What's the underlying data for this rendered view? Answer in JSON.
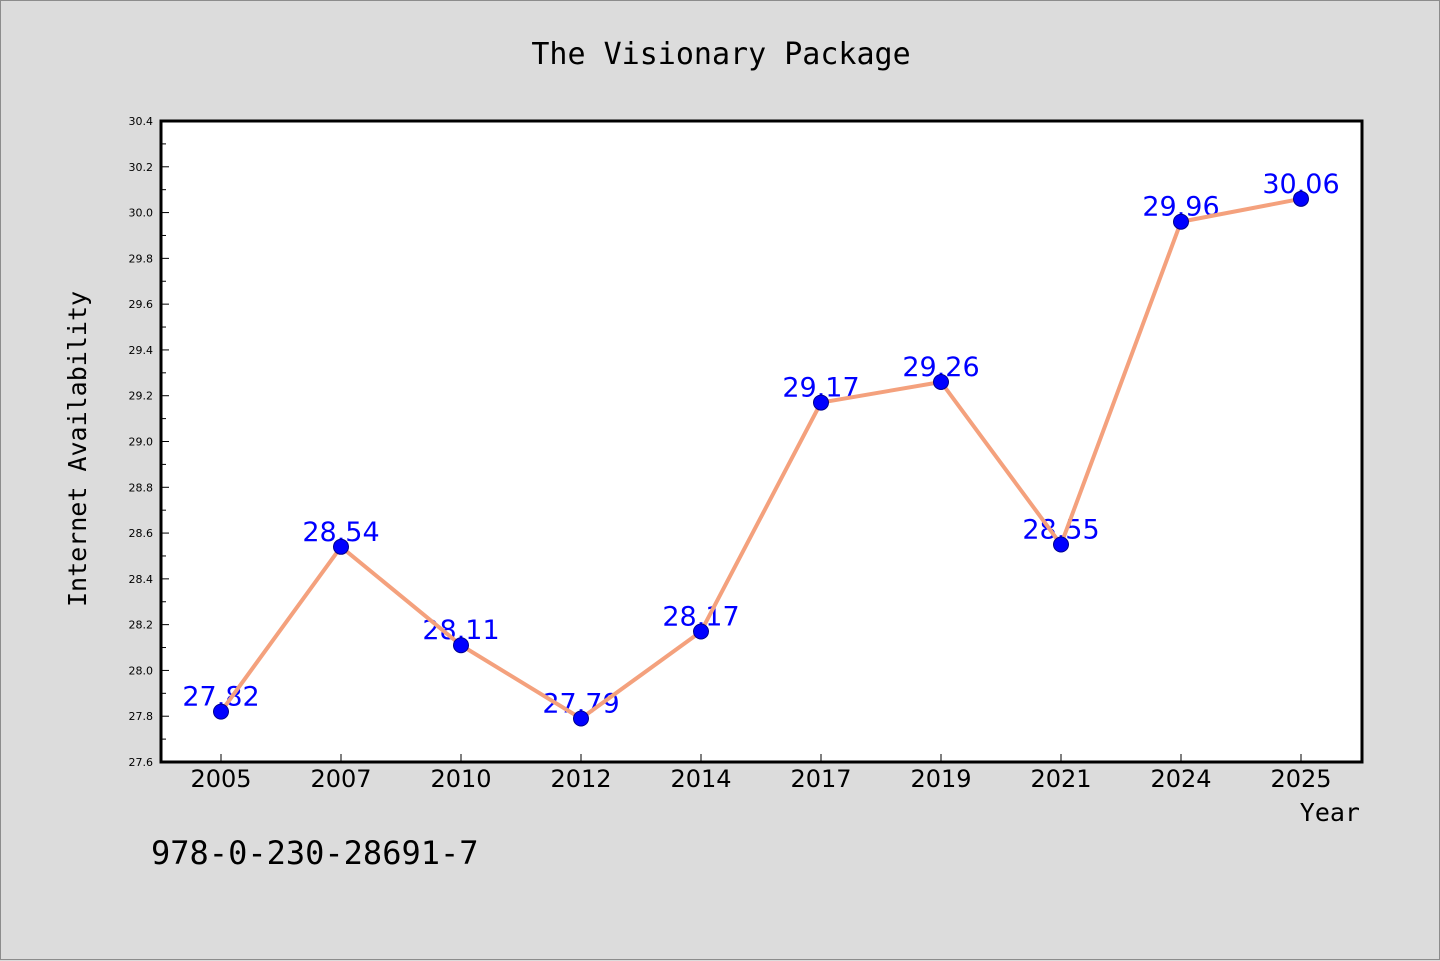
{
  "chart_data": {
    "type": "line",
    "title": "The Visionary Package",
    "xlabel": "Year",
    "ylabel": "Internet Availability",
    "categories": [
      "2005",
      "2007",
      "2010",
      "2012",
      "2014",
      "2017",
      "2019",
      "2021",
      "2024",
      "2025"
    ],
    "values": [
      27.82,
      28.54,
      28.11,
      27.79,
      28.17,
      29.17,
      29.26,
      28.55,
      29.96,
      30.06
    ],
    "data_labels": [
      "27.82",
      "28.54",
      "28.11",
      "27.79",
      "28.17",
      "29.17",
      "29.26",
      "28.55",
      "29.96",
      "30.06"
    ],
    "ylim": [
      27.6,
      30.4
    ],
    "yticks": [
      "27.6",
      "27.8",
      "28.0",
      "28.2",
      "28.4",
      "28.6",
      "28.8",
      "29.0",
      "29.2",
      "29.4",
      "29.6",
      "29.8",
      "30.0",
      "30.2",
      "30.4"
    ],
    "grid": false,
    "legend": "none",
    "colors": {
      "line": "#f4a17d",
      "marker": "#0000ff",
      "label": "#0000ff",
      "plot_background": "#ffffff",
      "figure_background": "#dcdcdc"
    }
  },
  "footer": {
    "isbn": "978-0-230-28691-7"
  }
}
